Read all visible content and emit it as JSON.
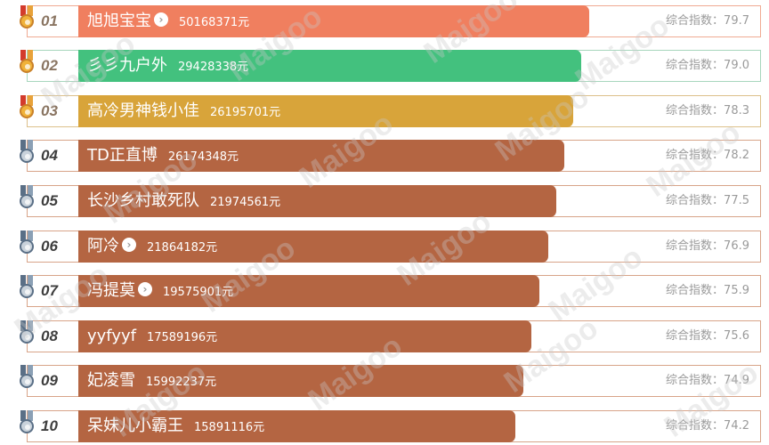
{
  "watermark_text": "Maigoo",
  "ranking": [
    {
      "rank": "01",
      "name": "旭旭宝宝",
      "has_arrow": true,
      "value": "50168371元",
      "score_label": "综合指数：",
      "score": "79.7",
      "bar_color": "#f07f5f",
      "frame_color": "#f0aa92",
      "medal": "gold",
      "bar_fill": 0.939
    },
    {
      "rank": "02",
      "name": "彡彡九户外",
      "has_arrow": false,
      "value": "29428338元",
      "score_label": "综合指数：",
      "score": "79.0",
      "bar_color": "#43c17e",
      "frame_color": "#a7d6bd",
      "medal": "gold",
      "bar_fill": 0.925
    },
    {
      "rank": "03",
      "name": "高冷男神钱小佳",
      "has_arrow": false,
      "value": "26195701元",
      "score_label": "综合指数：",
      "score": "78.3",
      "bar_color": "#d8a43a",
      "frame_color": "#dcc08a",
      "medal": "gold",
      "bar_fill": 0.91
    },
    {
      "rank": "04",
      "name": "TD正直博",
      "has_arrow": false,
      "value": "26174348元",
      "score_label": "综合指数：",
      "score": "78.2",
      "bar_color": "#b46542",
      "frame_color": "#d8a489",
      "medal": "silver",
      "bar_fill": 0.894
    },
    {
      "rank": "05",
      "name": "长沙乡村敢死队",
      "has_arrow": false,
      "value": "21974561元",
      "score_label": "综合指数：",
      "score": "77.5",
      "bar_color": "#b46542",
      "frame_color": "#d8a489",
      "medal": "silver",
      "bar_fill": 0.879
    },
    {
      "rank": "06",
      "name": "阿冷",
      "has_arrow": true,
      "value": "21864182元",
      "score_label": "综合指数：",
      "score": "76.9",
      "bar_color": "#b46542",
      "frame_color": "#d8a489",
      "medal": "silver",
      "bar_fill": 0.864
    },
    {
      "rank": "07",
      "name": "冯提莫",
      "has_arrow": true,
      "value": "19575901元",
      "score_label": "综合指数：",
      "score": "75.9",
      "bar_color": "#b46542",
      "frame_color": "#d8a489",
      "medal": "silver",
      "bar_fill": 0.848
    },
    {
      "rank": "08",
      "name": "yyfyyf",
      "has_arrow": false,
      "value": "17589196元",
      "score_label": "综合指数：",
      "score": "75.6",
      "bar_color": "#b46542",
      "frame_color": "#d8a489",
      "medal": "silver",
      "bar_fill": 0.833
    },
    {
      "rank": "09",
      "name": "妃凌雪",
      "has_arrow": false,
      "value": "15992237元",
      "score_label": "综合指数：",
      "score": "74.9",
      "bar_color": "#b46542",
      "frame_color": "#d8a489",
      "medal": "silver",
      "bar_fill": 0.818
    },
    {
      "rank": "10",
      "name": "呆妹儿小霸王",
      "has_arrow": false,
      "value": "15891116元",
      "score_label": "综合指数：",
      "score": "74.2",
      "bar_color": "#b46542",
      "frame_color": "#d8a489",
      "medal": "silver",
      "bar_fill": 0.803
    }
  ]
}
